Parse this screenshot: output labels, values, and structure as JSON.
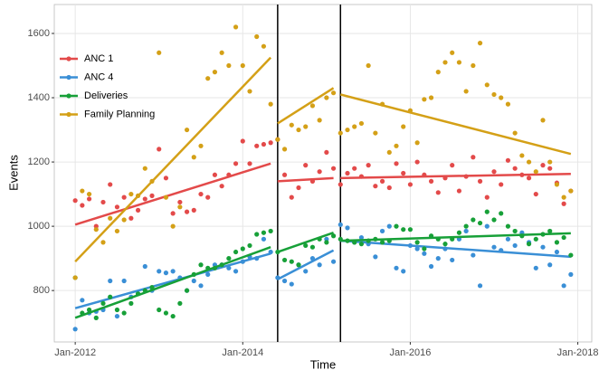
{
  "chart_data": {
    "type": "scatter",
    "x_label": "Time",
    "y_label": "Events",
    "x": [
      "2012-01",
      "2012-02",
      "2012-03",
      "2012-04",
      "2012-05",
      "2012-06",
      "2012-07",
      "2012-08",
      "2012-09",
      "2012-10",
      "2012-11",
      "2012-12",
      "2013-01",
      "2013-02",
      "2013-03",
      "2013-04",
      "2013-05",
      "2013-06",
      "2013-07",
      "2013-08",
      "2013-09",
      "2013-10",
      "2013-11",
      "2013-12",
      "2014-01",
      "2014-02",
      "2014-03",
      "2014-04",
      "2014-05",
      "2014-06",
      "2014-07",
      "2014-08",
      "2014-09",
      "2014-10",
      "2014-11",
      "2014-12",
      "2015-01",
      "2015-02",
      "2015-03",
      "2015-04",
      "2015-05",
      "2015-06",
      "2015-07",
      "2015-08",
      "2015-09",
      "2015-10",
      "2015-11",
      "2015-12",
      "2016-01",
      "2016-02",
      "2016-03",
      "2016-04",
      "2016-05",
      "2016-06",
      "2016-07",
      "2016-08",
      "2016-09",
      "2016-10",
      "2016-11",
      "2016-12",
      "2017-01",
      "2017-02",
      "2017-03",
      "2017-04",
      "2017-05",
      "2017-06",
      "2017-07",
      "2017-08",
      "2017-09",
      "2017-10",
      "2017-11",
      "2017-12"
    ],
    "series": [
      {
        "name": "ANC 1",
        "color": "#e34a4a",
        "values": [
          1080,
          1065,
          1085,
          1000,
          1075,
          1130,
          1060,
          1090,
          1025,
          1050,
          1085,
          1095,
          1240,
          1150,
          1040,
          1075,
          1045,
          1050,
          1100,
          1090,
          1160,
          1125,
          1160,
          1195,
          1265,
          1195,
          1250,
          1255,
          1260,
          1270,
          1160,
          1090,
          1120,
          1190,
          1140,
          1170,
          1230,
          1180,
          1130,
          1165,
          1180,
          1155,
          1190,
          1125,
          1140,
          1120,
          1195,
          1165,
          1130,
          1200,
          1160,
          1140,
          1105,
          1150,
          1190,
          1110,
          1155,
          1215,
          1140,
          1090,
          1170,
          1130,
          1205,
          1180,
          1160,
          1150,
          1100,
          1190,
          1180,
          1135,
          1070,
          1110
        ],
        "trend": [
          {
            "x": [
              "2012-01",
              "2014-05"
            ],
            "values": [
              1005,
              1195
            ]
          },
          {
            "x": [
              "2014-06",
              "2015-02"
            ],
            "values": [
              1140,
              1150
            ]
          },
          {
            "x": [
              "2015-03",
              "2017-12"
            ],
            "values": [
              1150,
              1163
            ]
          }
        ]
      },
      {
        "name": "ANC 4",
        "color": "#3a8fd6",
        "values": [
          680,
          770,
          730,
          735,
          740,
          830,
          720,
          830,
          780,
          790,
          875,
          800,
          860,
          855,
          860,
          840,
          800,
          830,
          815,
          850,
          880,
          880,
          870,
          860,
          890,
          905,
          900,
          960,
          920,
          840,
          830,
          820,
          880,
          860,
          900,
          880,
          960,
          890,
          1005,
          995,
          950,
          965,
          945,
          905,
          985,
          1000,
          870,
          860,
          940,
          930,
          915,
          875,
          900,
          930,
          895,
          960,
          985,
          910,
          815,
          1000,
          935,
          925,
          960,
          940,
          980,
          950,
          870,
          935,
          880,
          920,
          815,
          850
        ],
        "trend": [
          {
            "x": [
              "2012-01",
              "2014-05"
            ],
            "values": [
              745,
              915
            ]
          },
          {
            "x": [
              "2014-06",
              "2015-02"
            ],
            "values": [
              835,
              925
            ]
          },
          {
            "x": [
              "2015-03",
              "2017-12"
            ],
            "values": [
              955,
              905
            ]
          }
        ]
      },
      {
        "name": "Deliveries",
        "color": "#17a038",
        "values": [
          840,
          730,
          740,
          715,
          760,
          780,
          740,
          730,
          760,
          790,
          800,
          810,
          740,
          730,
          720,
          760,
          800,
          850,
          880,
          870,
          870,
          880,
          900,
          920,
          930,
          940,
          975,
          980,
          985,
          920,
          895,
          890,
          880,
          940,
          935,
          960,
          950,
          970,
          960,
          955,
          950,
          945,
          955,
          960,
          950,
          955,
          1000,
          990,
          990,
          950,
          930,
          970,
          960,
          945,
          960,
          980,
          1000,
          1020,
          1010,
          1045,
          1020,
          1040,
          1000,
          985,
          970,
          945,
          960,
          975,
          985,
          950,
          965,
          910
        ],
        "trend": [
          {
            "x": [
              "2012-01",
              "2014-05"
            ],
            "values": [
              715,
              935
            ]
          },
          {
            "x": [
              "2014-06",
              "2015-02"
            ],
            "values": [
              920,
              980
            ]
          },
          {
            "x": [
              "2015-03",
              "2017-12"
            ],
            "values": [
              955,
              978
            ]
          }
        ]
      },
      {
        "name": "Family Planning",
        "color": "#d4a017",
        "values": [
          840,
          1110,
          1100,
          990,
          950,
          1025,
          985,
          1020,
          1100,
          1095,
          1180,
          1140,
          1540,
          1090,
          1000,
          1060,
          1300,
          1215,
          1250,
          1460,
          1480,
          1540,
          1500,
          1620,
          1500,
          1420,
          1590,
          1560,
          1380,
          1270,
          1240,
          1315,
          1300,
          1310,
          1375,
          1330,
          1400,
          1415,
          1290,
          1300,
          1310,
          1320,
          1500,
          1290,
          1380,
          1230,
          1250,
          1310,
          1360,
          1260,
          1395,
          1400,
          1480,
          1510,
          1540,
          1510,
          1420,
          1500,
          1570,
          1440,
          1410,
          1400,
          1380,
          1290,
          1220,
          1200,
          1170,
          1330,
          1200,
          1130,
          1090,
          1110
        ],
        "trend": [
          {
            "x": [
              "2012-01",
              "2014-05"
            ],
            "values": [
              890,
              1525
            ]
          },
          {
            "x": [
              "2014-06",
              "2015-02"
            ],
            "values": [
              1320,
              1430
            ]
          },
          {
            "x": [
              "2015-03",
              "2017-12"
            ],
            "values": [
              1410,
              1225
            ]
          }
        ]
      }
    ],
    "breaks": [
      "2014-06",
      "2015-03"
    ],
    "xlim": [
      "2011-10",
      "2018-03"
    ],
    "xticks": [
      {
        "value": "2012-01",
        "label": "Jan-2012"
      },
      {
        "value": "2014-01",
        "label": "Jan-2014"
      },
      {
        "value": "2016-01",
        "label": "Jan-2016"
      },
      {
        "value": "2018-01",
        "label": "Jan-2018"
      }
    ],
    "ylim": [
      640,
      1690
    ],
    "yticks": [
      800,
      1000,
      1200,
      1400,
      1600
    ],
    "grid": true,
    "legend": "top-left"
  }
}
